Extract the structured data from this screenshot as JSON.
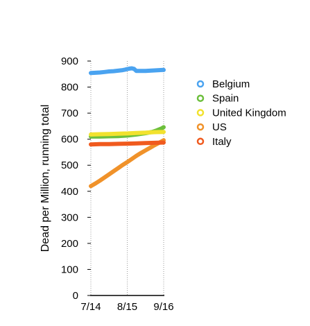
{
  "chart_data": {
    "type": "scatter",
    "ylabel": "Dead per Million, running total",
    "xlabel": "",
    "x_tick_labels": [
      "7/14",
      "8/15",
      "9/16"
    ],
    "y_ticks": [
      0,
      100,
      200,
      300,
      400,
      500,
      600,
      700,
      800,
      900
    ],
    "ylim": [
      0,
      900
    ],
    "legend_position": "right",
    "grid": "vertical dotted lines at x ticks",
    "series": [
      {
        "name": "Belgium",
        "color": "#4aa3f0",
        "x": [
          0,
          4,
          8,
          12,
          16,
          20,
          24,
          28,
          30,
          32,
          34,
          36,
          38,
          40,
          44,
          48,
          52,
          56,
          60,
          64
        ],
        "y": [
          854,
          855,
          856,
          858,
          860,
          861,
          863,
          865,
          867,
          869,
          871,
          872,
          870,
          862,
          862,
          862,
          863,
          864,
          865,
          866
        ]
      },
      {
        "name": "Spain",
        "color": "#6cbf3c",
        "x": [
          0,
          8,
          16,
          24,
          32,
          40,
          48,
          54,
          58,
          62,
          64
        ],
        "y": [
          610,
          610,
          611,
          612,
          614,
          618,
          623,
          628,
          634,
          641,
          646
        ]
      },
      {
        "name": "United Kingdom",
        "color": "#f2e22e",
        "x": [
          0,
          8,
          16,
          24,
          32,
          40,
          48,
          56,
          64
        ],
        "y": [
          618,
          619,
          620,
          621,
          622,
          624,
          625,
          627,
          628
        ]
      },
      {
        "name": "US",
        "color": "#f0922a",
        "x": [
          0,
          4,
          8,
          12,
          16,
          20,
          24,
          28,
          32,
          36,
          40,
          44,
          48,
          52,
          56,
          60,
          64
        ],
        "y": [
          420,
          430,
          441,
          453,
          465,
          477,
          489,
          501,
          512,
          524,
          536,
          547,
          557,
          567,
          577,
          586,
          596
        ]
      },
      {
        "name": "Italy",
        "color": "#f05a1e",
        "x": [
          0,
          8,
          16,
          24,
          32,
          40,
          48,
          56,
          64
        ],
        "y": [
          580,
          581,
          581,
          582,
          583,
          584,
          585,
          586,
          587
        ]
      }
    ]
  }
}
